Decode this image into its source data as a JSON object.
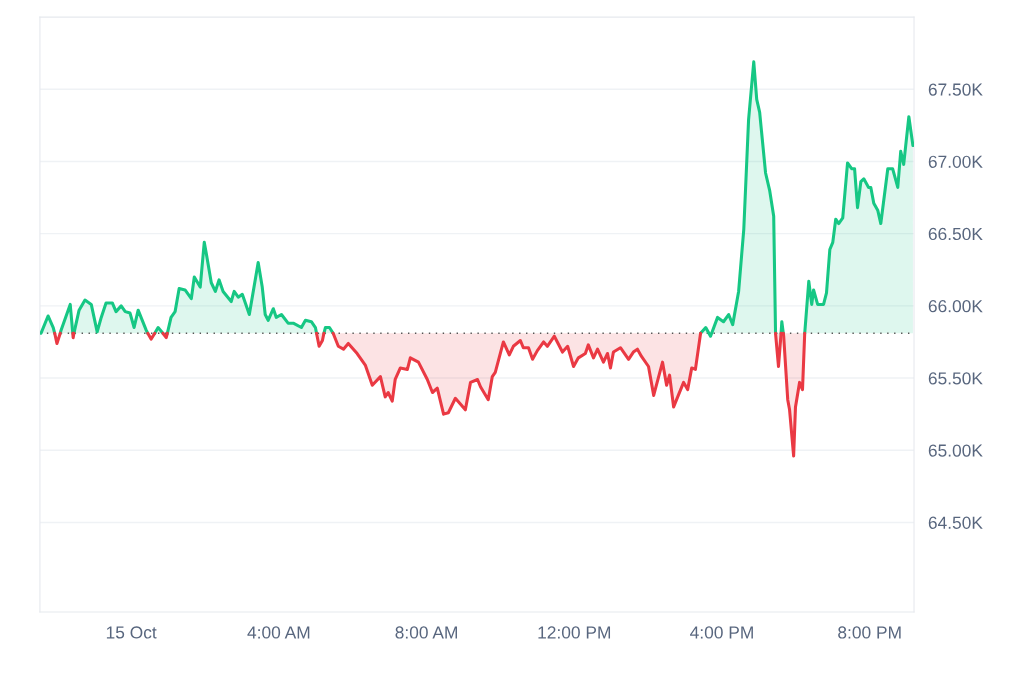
{
  "chart_data": {
    "type": "area",
    "xlim": [
      -2.47,
      21.2
    ],
    "xticks": [
      {
        "value": 0,
        "label": "15 Oct"
      },
      {
        "value": 4,
        "label": "4:00 AM"
      },
      {
        "value": 8,
        "label": "8:00 AM"
      },
      {
        "value": 12,
        "label": "12:00 PM"
      },
      {
        "value": 16,
        "label": "4:00 PM"
      },
      {
        "value": 20,
        "label": "8:00 PM"
      }
    ],
    "ylim": [
      63880,
      68000
    ],
    "yticks": [
      {
        "value": 64500,
        "label": "64.50K"
      },
      {
        "value": 65000,
        "label": "65.00K"
      },
      {
        "value": 65500,
        "label": "65.50K"
      },
      {
        "value": 66000,
        "label": "66.00K"
      },
      {
        "value": 66500,
        "label": "66.50K"
      },
      {
        "value": 67000,
        "label": "67.00K"
      },
      {
        "value": 67500,
        "label": "67.50K"
      }
    ],
    "grid": "y",
    "ref_lines": [
      {
        "axis": "y",
        "value": 65810,
        "color": "#555555",
        "line_style": "dotted"
      }
    ],
    "series": [
      {
        "color": "#16c784",
        "x": [
          -2.44,
          -2.25,
          -2.11,
          -2.07
        ],
        "values": [
          65810,
          65930,
          65850,
          65810
        ]
      },
      {
        "color": "#16c784",
        "x": [
          -1.92,
          -1.9,
          -1.65,
          -1.58
        ],
        "values": [
          65810,
          65830,
          66010,
          65810
        ]
      },
      {
        "color": "#16c784",
        "x": [
          -1.55,
          -1.41,
          -1.25,
          -1.08,
          -0.92,
          -0.81,
          -0.68,
          -0.51,
          -0.41,
          -0.27,
          -0.16,
          -0.03,
          0.08,
          0.19,
          0.41,
          0.45
        ],
        "values": [
          65810,
          65970,
          66040,
          66010,
          65820,
          65920,
          66020,
          66020,
          65960,
          66000,
          65960,
          65950,
          65850,
          65970,
          65830,
          65810
        ]
      },
      {
        "color": "#16c784",
        "x": [
          0.64,
          0.73,
          0.86
        ],
        "values": [
          65810,
          65850,
          65810
        ]
      },
      {
        "color": "#16c784",
        "x": [
          0.98,
          1.08,
          1.19,
          1.3,
          1.46,
          1.63,
          1.71,
          1.87,
          1.98,
          2.03,
          2.17,
          2.28,
          2.38,
          2.49,
          2.71,
          2.79,
          2.9,
          3.01,
          3.2,
          3.44,
          3.55,
          3.63,
          3.71,
          3.85,
          3.93,
          4.07,
          4.25,
          4.39,
          4.61,
          4.72,
          4.88,
          4.99,
          5.02
        ],
        "values": [
          65810,
          65920,
          65960,
          66120,
          66110,
          66050,
          66200,
          66130,
          66440,
          66370,
          66160,
          66100,
          66180,
          66100,
          66030,
          66100,
          66060,
          66080,
          65940,
          66300,
          66130,
          65940,
          65900,
          65980,
          65920,
          65940,
          65880,
          65880,
          65850,
          65900,
          65890,
          65850,
          65810
        ]
      },
      {
        "color": "#16c784",
        "x": [
          5.22,
          5.26,
          5.37,
          5.47
        ],
        "values": [
          65810,
          65850,
          65850,
          65810
        ]
      },
      {
        "color": "#16c784",
        "x": [
          15.42,
          15.56,
          15.69,
          15.88,
          16.04,
          16.18,
          16.29,
          16.45,
          16.59,
          16.72,
          16.86,
          16.94,
          17.02,
          17.18,
          17.29,
          17.4,
          17.45
        ],
        "values": [
          65810,
          65850,
          65790,
          65920,
          65890,
          65940,
          65870,
          66100,
          66530,
          67290,
          67690,
          67430,
          67340,
          66920,
          66800,
          66620,
          65810
        ]
      },
      {
        "type": "line",
        "color": "#16c784",
        "x": [
          17.6,
          17.62,
          17.66
        ],
        "values": [
          65810,
          65890,
          65810
        ]
      },
      {
        "color": "#16c784",
        "x": [
          18.24,
          18.35,
          18.43,
          18.48,
          18.59,
          18.75,
          18.83,
          18.92,
          19.0,
          19.08,
          19.16,
          19.27,
          19.4,
          19.51,
          19.59,
          19.67,
          19.76,
          19.84,
          19.97,
          20.03,
          20.11,
          20.22,
          20.3,
          20.49,
          20.62,
          20.76,
          20.84,
          20.92,
          21.06,
          21.17
        ],
        "values": [
          65810,
          66170,
          66010,
          66110,
          66010,
          66010,
          66090,
          66390,
          66440,
          66600,
          66570,
          66610,
          66990,
          66950,
          66950,
          66680,
          66860,
          66880,
          66820,
          66820,
          66710,
          66660,
          66570,
          66950,
          66950,
          66820,
          67070,
          66980,
          67310,
          67110
        ]
      },
      {
        "type": "line",
        "color": "#ea3943",
        "x": [
          -2.07,
          -2.01,
          -1.92
        ],
        "values": [
          65810,
          65740,
          65810
        ]
      },
      {
        "type": "line",
        "color": "#ea3943",
        "x": [
          -1.58,
          -1.57,
          -1.55
        ],
        "values": [
          65810,
          65780,
          65810
        ]
      },
      {
        "type": "line",
        "color": "#ea3943",
        "x": [
          0.45,
          0.54,
          0.64
        ],
        "values": [
          65810,
          65770,
          65810
        ]
      },
      {
        "type": "line",
        "color": "#ea3943",
        "x": [
          0.86,
          0.95,
          0.98
        ],
        "values": [
          65810,
          65780,
          65810
        ]
      },
      {
        "type": "line",
        "color": "#ea3943",
        "x": [
          5.02,
          5.09,
          5.18,
          5.22
        ],
        "values": [
          65810,
          65720,
          65760,
          65810
        ],
        "lower": [
          65810,
          65720,
          65760,
          65810
        ],
        "upper": [
          65810,
          65810,
          65810,
          65810
        ]
      },
      {
        "type": "line",
        "color": "#ea3943",
        "x": [
          5.47,
          5.61,
          5.75,
          5.88,
          6.12,
          6.34,
          6.53,
          6.75,
          6.88,
          6.96,
          7.07,
          7.15,
          7.29,
          7.48,
          7.56,
          7.78,
          8.02,
          8.16,
          8.29,
          8.46,
          8.59,
          8.78,
          9.05,
          9.19,
          9.38,
          9.46,
          9.67,
          9.78,
          9.86,
          10.08,
          10.24,
          10.35,
          10.54,
          10.62,
          10.76,
          10.87,
          11.0,
          11.17,
          11.27,
          11.46,
          11.68,
          11.82,
          11.98,
          12.11,
          12.3,
          12.38,
          12.52,
          12.63,
          12.79,
          12.9,
          12.98,
          13.06,
          13.25,
          13.47,
          13.6,
          13.71,
          13.82,
          14.01,
          14.15,
          14.39,
          14.5,
          14.58,
          14.69,
          14.96,
          15.07,
          15.18,
          15.28,
          15.42
        ],
        "values": [
          65810,
          65720,
          65700,
          65740,
          65670,
          65590,
          65450,
          65510,
          65370,
          65400,
          65340,
          65490,
          65570,
          65560,
          65640,
          65610,
          65490,
          65400,
          65430,
          65250,
          65260,
          65360,
          65280,
          65470,
          65490,
          65440,
          65350,
          65510,
          65540,
          65750,
          65660,
          65720,
          65760,
          65710,
          65710,
          65630,
          65690,
          65750,
          65720,
          65790,
          65680,
          65720,
          65580,
          65640,
          65670,
          65730,
          65640,
          65700,
          65610,
          65670,
          65570,
          65680,
          65710,
          65630,
          65680,
          65700,
          65650,
          65580,
          65380,
          65610,
          65450,
          65520,
          65300,
          65470,
          65420,
          65570,
          65560,
          65810
        ],
        "lower": [
          65810,
          65720,
          65700,
          65740,
          65670,
          65590,
          65450,
          65510,
          65370,
          65400,
          65340,
          65490,
          65570,
          65560,
          65640,
          65610,
          65490,
          65400,
          65430,
          65250,
          65260,
          65360,
          65280,
          65470,
          65490,
          65440,
          65350,
          65510,
          65540,
          65750,
          65660,
          65720,
          65760,
          65710,
          65710,
          65630,
          65690,
          65750,
          65720,
          65790,
          65680,
          65720,
          65580,
          65640,
          65670,
          65730,
          65640,
          65700,
          65610,
          65670,
          65570,
          65680,
          65710,
          65630,
          65680,
          65700,
          65650,
          65580,
          65380,
          65610,
          65450,
          65520,
          65300,
          65470,
          65420,
          65570,
          65560,
          65810
        ],
        "upper": [
          65810,
          65810,
          65810,
          65810,
          65810,
          65810,
          65810,
          65810,
          65810,
          65810,
          65810,
          65810,
          65810,
          65810,
          65810,
          65810,
          65810,
          65810,
          65810,
          65810,
          65810,
          65810,
          65810,
          65810,
          65810,
          65810,
          65810,
          65810,
          65810,
          65810,
          65810,
          65810,
          65810,
          65810,
          65810,
          65810,
          65810,
          65810,
          65810,
          65810,
          65810,
          65810,
          65810,
          65810,
          65810,
          65810,
          65810,
          65810,
          65810,
          65810,
          65810,
          65810,
          65810,
          65810,
          65810,
          65810,
          65810,
          65810,
          65810,
          65810,
          65810,
          65810,
          65810,
          65810,
          65810,
          65810,
          65810,
          65810
        ]
      },
      {
        "type": "line",
        "color": "#ea3943",
        "x": [
          17.45,
          17.53,
          17.6
        ],
        "values": [
          65810,
          65580,
          65810
        ],
        "lower": [
          65810,
          65580,
          65810
        ],
        "upper": [
          65810,
          65810,
          65810
        ]
      },
      {
        "type": "line",
        "color": "#ea3943",
        "x": [
          17.66,
          17.67,
          17.78,
          17.83,
          17.94,
          17.99,
          18.1,
          18.18,
          18.24
        ],
        "values": [
          65810,
          65790,
          65350,
          65280,
          64960,
          65300,
          65470,
          65420,
          65810
        ],
        "lower": [
          65810,
          65790,
          65350,
          65280,
          64960,
          65300,
          65470,
          65420,
          65810
        ],
        "upper": [
          65810,
          65810,
          65810,
          65810,
          65810,
          65810,
          65810,
          65810,
          65810
        ]
      }
    ]
  }
}
